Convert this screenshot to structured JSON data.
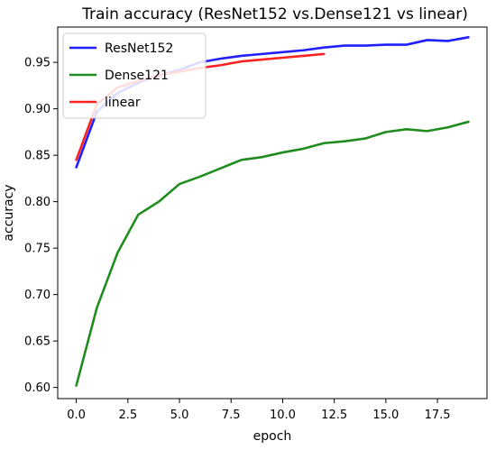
{
  "chart_data": {
    "type": "line",
    "title": "Train accuracy (ResNet152 vs.Dense121 vs linear)",
    "xlabel": "epoch",
    "ylabel": "accuracy",
    "xlim": [
      -0.9,
      19.9
    ],
    "ylim": [
      0.588,
      0.988
    ],
    "xticks": [
      0.0,
      2.5,
      5.0,
      7.5,
      10.0,
      12.5,
      15.0,
      17.5
    ],
    "xtick_labels": [
      "0.0",
      "2.5",
      "5.0",
      "7.5",
      "10.0",
      "12.5",
      "15.0",
      "17.5"
    ],
    "yticks": [
      0.6,
      0.65,
      0.7,
      0.75,
      0.8,
      0.85,
      0.9,
      0.95
    ],
    "ytick_labels": [
      "0.60",
      "0.65",
      "0.70",
      "0.75",
      "0.80",
      "0.85",
      "0.90",
      "0.95"
    ],
    "grid": false,
    "legend_position": "top-left",
    "series": [
      {
        "name": "ResNet152",
        "color": "#1f1fff",
        "x": [
          0,
          1,
          2,
          3,
          4,
          5,
          6,
          7,
          8,
          9,
          10,
          11,
          12,
          13,
          14,
          15,
          16,
          17,
          18,
          19
        ],
        "values": [
          0.837,
          0.897,
          0.917,
          0.928,
          0.936,
          0.942,
          0.95,
          0.954,
          0.957,
          0.959,
          0.961,
          0.963,
          0.966,
          0.968,
          0.968,
          0.969,
          0.969,
          0.974,
          0.973,
          0.977
        ]
      },
      {
        "name": "Dense121",
        "color": "#208c20",
        "x": [
          0,
          1,
          2,
          3,
          4,
          5,
          6,
          7,
          8,
          9,
          10,
          11,
          12,
          13,
          14,
          15,
          16,
          17,
          18,
          19
        ],
        "values": [
          0.602,
          0.686,
          0.745,
          0.786,
          0.8,
          0.819,
          0.827,
          0.836,
          0.845,
          0.848,
          0.853,
          0.857,
          0.863,
          0.865,
          0.868,
          0.875,
          0.878,
          0.876,
          0.88,
          0.886
        ]
      },
      {
        "name": "linear",
        "color": "#ff2020",
        "x": [
          0,
          1,
          2,
          3,
          4,
          5,
          6,
          7,
          8,
          9,
          10,
          11,
          12
        ],
        "values": [
          0.845,
          0.905,
          0.923,
          0.93,
          0.936,
          0.94,
          0.944,
          0.947,
          0.951,
          0.953,
          0.955,
          0.957,
          0.959
        ]
      }
    ]
  }
}
